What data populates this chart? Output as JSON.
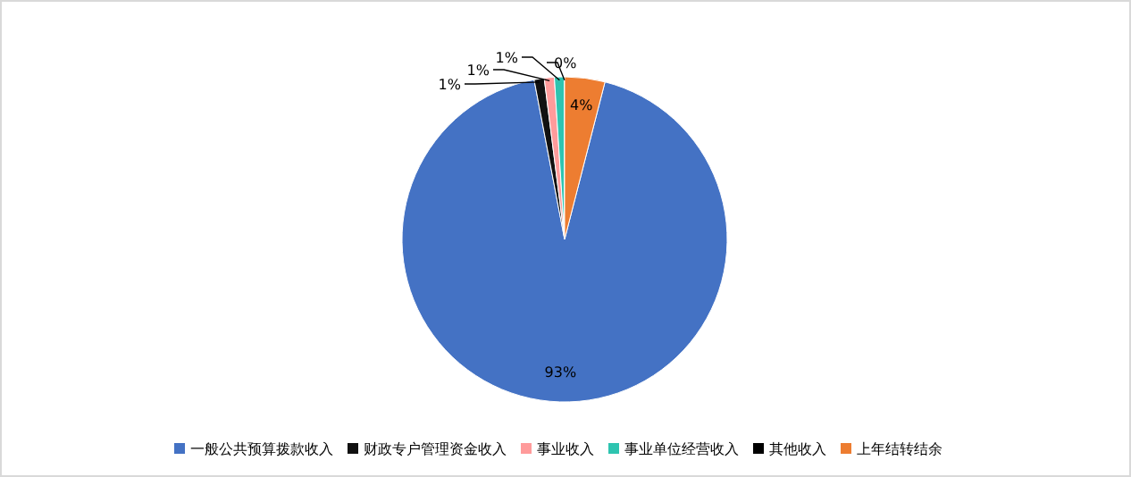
{
  "chart_data": {
    "type": "pie",
    "categories": [
      "一般公共预算拨款收入",
      "财政专户管理资金收入",
      "事业收入",
      "事业单位经营收入",
      "其他收入",
      "上年结转结余"
    ],
    "values": [
      93,
      1,
      1,
      1,
      0,
      4
    ],
    "colors": [
      "#4472c4",
      "#111111",
      "#ff9b9b",
      "#2ec4b0",
      "#000000",
      "#ed7d31"
    ],
    "value_labels": [
      "93%",
      "1%",
      "1%",
      "1%",
      "0%",
      "4%"
    ],
    "legend": "bottom"
  }
}
